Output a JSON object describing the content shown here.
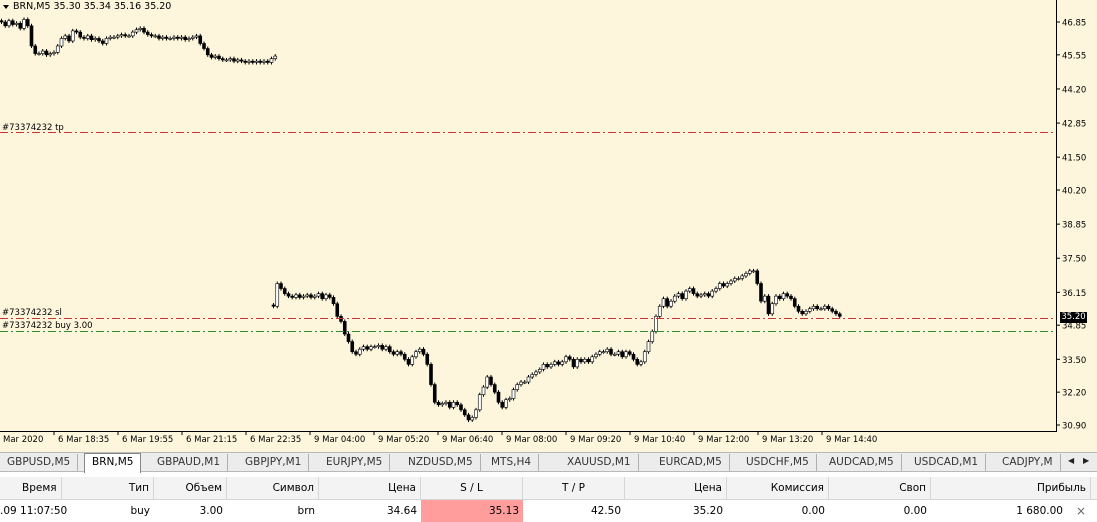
{
  "chart": {
    "symbol_label": "BRN,M5  35.30 35.34 35.16 35.20",
    "tp_label": "#73374232 tp",
    "sl_label": "#73374232 sl",
    "buy_label": "#73374232 buy 3.00",
    "current_price_tag": "35.20",
    "price_axis": [
      "46.85",
      "45.55",
      "44.20",
      "42.85",
      "41.50",
      "40.20",
      "38.85",
      "37.50",
      "36.15",
      "34.85",
      "33.50",
      "32.20",
      "30.90"
    ],
    "time_axis": [
      "Mar 2020",
      "6 Mar 18:35",
      "6 Mar 19:55",
      "6 Mar 21:15",
      "6 Mar 22:35",
      "9 Mar 04:00",
      "9 Mar 05:20",
      "9 Mar 06:40",
      "9 Mar 08:00",
      "9 Mar 09:20",
      "9 Mar 10:40",
      "9 Mar 12:00",
      "9 Mar 13:20",
      "9 Mar 14:40"
    ],
    "colors": {
      "background": "#fdf5dc",
      "tp_line": "#cc3333",
      "sl_line": "#cc3333",
      "buy_line": "#2e8b2e",
      "candle": "#000000"
    }
  },
  "chart_data": {
    "type": "candlestick",
    "title": "BRN,M5",
    "ylim": [
      30.9,
      46.85
    ],
    "lines": {
      "tp": 42.5,
      "sl": 35.13,
      "buy": 34.64,
      "current": 35.2
    },
    "segments": [
      {
        "start": 0,
        "closes": [
          46.85,
          46.7,
          46.9,
          46.75,
          46.8,
          46.6,
          46.95,
          46.7,
          45.9,
          45.6,
          45.6,
          45.7,
          45.55,
          45.6,
          45.65,
          45.9,
          46.2,
          46.3,
          46.1,
          46.5,
          46.45,
          46.25,
          46.2,
          46.3,
          46.15,
          46.2,
          46.1,
          46.0,
          46.2,
          46.25,
          46.25,
          46.3,
          46.35,
          46.3,
          46.3,
          46.45,
          46.55,
          46.6,
          46.45,
          46.35,
          46.3,
          46.3,
          46.2,
          46.25,
          46.2,
          46.2,
          46.25,
          46.2,
          46.25,
          46.15,
          46.2,
          46.25,
          46.3,
          46.0,
          45.8,
          45.55,
          45.45,
          45.5,
          45.4,
          45.35,
          45.35,
          45.4,
          45.3,
          45.35,
          45.3,
          45.25,
          45.3,
          45.25,
          45.3,
          45.25,
          45.3,
          45.25,
          45.4,
          45.5
        ]
      },
      {
        "start": 272,
        "closes": [
          35.6,
          36.5,
          36.3,
          36.1,
          36.0,
          35.95,
          36.05,
          35.95,
          36.0,
          36.05,
          35.95,
          36.0,
          36.1,
          35.9,
          36.05,
          35.95,
          35.7,
          35.2,
          35.0,
          34.5,
          34.2,
          33.8,
          33.7,
          33.9,
          34.0,
          33.9,
          34.0,
          34.0,
          34.05,
          33.9,
          34.0,
          33.8,
          33.7,
          33.8,
          33.7,
          33.5,
          33.3,
          33.6,
          33.8,
          33.9,
          33.7,
          33.3,
          32.5,
          31.8,
          31.7,
          31.75,
          31.8,
          31.6,
          31.8,
          31.7,
          31.5,
          31.3,
          31.1,
          31.2,
          31.5,
          32.1,
          32.4,
          32.8,
          32.5,
          32.2,
          31.8,
          31.6,
          31.9,
          31.95,
          32.3,
          32.5,
          32.6,
          32.6,
          32.8,
          32.9,
          33.0,
          33.1,
          33.3,
          33.2,
          33.3,
          33.4,
          33.3,
          33.4,
          33.6,
          33.5,
          33.2,
          33.5,
          33.4,
          33.5,
          33.4,
          33.6,
          33.7,
          33.8,
          33.8,
          33.9,
          33.7,
          33.7,
          33.8,
          33.6,
          33.8,
          33.7,
          33.5,
          33.3,
          33.4,
          33.8,
          34.2,
          34.6,
          35.2,
          35.6,
          35.9,
          35.6,
          35.8,
          36.0,
          36.1,
          35.9,
          36.2,
          36.3,
          36.1,
          36.0,
          36.05,
          36.1,
          36.0,
          36.2,
          36.3,
          36.5,
          36.4,
          36.5,
          36.6,
          36.7,
          36.7,
          36.8,
          36.9,
          37.0,
          37.0,
          36.5,
          35.8,
          36.0,
          35.3,
          35.7,
          36.0,
          35.9,
          36.1,
          36.0,
          35.9,
          35.6,
          35.4,
          35.3,
          35.4,
          35.5,
          35.6,
          35.5,
          35.5,
          35.6,
          35.5,
          35.4,
          35.3,
          35.2
        ]
      }
    ]
  },
  "tabs": {
    "items": [
      {
        "label": "GBPUSD,M5",
        "active": false
      },
      {
        "label": "BRN,M5",
        "active": true
      },
      {
        "label": "GBPAUD,M1",
        "active": false
      },
      {
        "label": "GBPJPY,M1",
        "active": false
      },
      {
        "label": "EURJPY,M5",
        "active": false
      },
      {
        "label": "NZDUSD,M5",
        "active": false
      },
      {
        "label": "MTS,H4",
        "active": false
      },
      {
        "label": "XAUUSD,M1",
        "active": false
      },
      {
        "label": "EURCAD,M5",
        "active": false
      },
      {
        "label": "USDCHF,M5",
        "active": false
      },
      {
        "label": "AUDCAD,M5",
        "active": false
      },
      {
        "label": "USDCAD,M1",
        "active": false
      },
      {
        "label": "CADJPY,M",
        "active": false
      }
    ],
    "scroll_left_icon": "◀",
    "scroll_right_icon": "▶"
  },
  "table": {
    "headers": [
      "Время",
      "Тип",
      "Объем",
      "Символ",
      "Цена",
      "S / L",
      "T / P",
      "Цена",
      "Комиссия",
      "Своп",
      "Прибыль"
    ],
    "rows": [
      {
        "cells": [
          ".09 11:07:50",
          "buy",
          "3.00",
          "brn",
          "34.64",
          "35.13",
          "42.50",
          "35.20",
          "0.00",
          "0.00",
          "1 680.00"
        ],
        "close_icon": "×"
      }
    ]
  }
}
